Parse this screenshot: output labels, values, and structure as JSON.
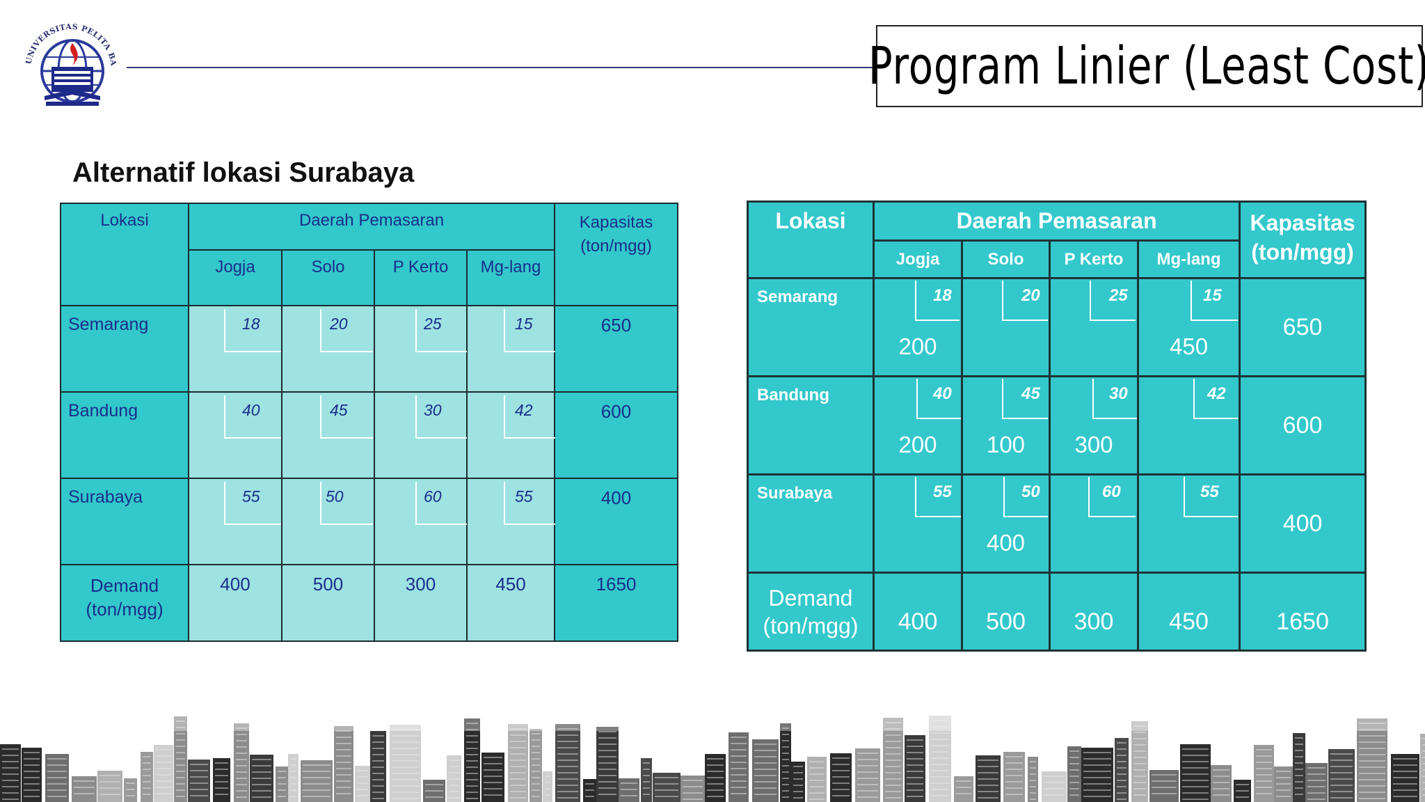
{
  "header": {
    "title": "Program Linier (Least Cost)",
    "logo_text": "UNIVERSITAS PELITA BANGSA"
  },
  "subtitle": "Alternatif lokasi Surabaya",
  "table_left": {
    "lokasi": "Lokasi",
    "daerah": "Daerah Pemasaran",
    "kapasitas": [
      "Kapasitas",
      "(ton/mgg)"
    ],
    "markets": [
      "Jogja",
      "Solo",
      "P Kerto",
      "Mg-lang"
    ],
    "rows": [
      {
        "label": "Semarang",
        "costs": [
          "18",
          "20",
          "25",
          "15"
        ],
        "capacity": "650"
      },
      {
        "label": "Bandung",
        "costs": [
          "40",
          "45",
          "30",
          "42"
        ],
        "capacity": "600"
      },
      {
        "label": "Surabaya",
        "costs": [
          "55",
          "50",
          "60",
          "55"
        ],
        "capacity": "400"
      }
    ],
    "demand_label": [
      "Demand",
      "(ton/mgg)"
    ],
    "demand": [
      "400",
      "500",
      "300",
      "450"
    ],
    "total": "1650"
  },
  "table_right": {
    "lokasi": "Lokasi",
    "daerah": "Daerah Pemasaran",
    "kapasitas": [
      "Kapasitas",
      "(ton/mgg)"
    ],
    "markets": [
      "Jogja",
      "Solo",
      "P Kerto",
      "Mg-lang"
    ],
    "rows": [
      {
        "label": "Semarang",
        "costs": [
          "18",
          "20",
          "25",
          "15"
        ],
        "alloc": [
          "200",
          "",
          "",
          "450"
        ],
        "capacity": "650"
      },
      {
        "label": "Bandung",
        "costs": [
          "40",
          "45",
          "30",
          "42"
        ],
        "alloc": [
          "200",
          "100",
          "300",
          ""
        ],
        "capacity": "600"
      },
      {
        "label": "Surabaya",
        "costs": [
          "55",
          "50",
          "60",
          "55"
        ],
        "alloc": [
          "",
          "400",
          "",
          ""
        ],
        "capacity": "400"
      }
    ],
    "demand_label": [
      "Demand",
      "(ton/mgg)"
    ],
    "demand": [
      "400",
      "500",
      "300",
      "450"
    ],
    "total": "1650"
  },
  "colors": {
    "teal": "#33c8cb",
    "light_teal": "#9ee2e2",
    "navy_text": "#1a2e8a"
  },
  "icons": [
    "university-logo-icon",
    "city-skyline-icon"
  ]
}
